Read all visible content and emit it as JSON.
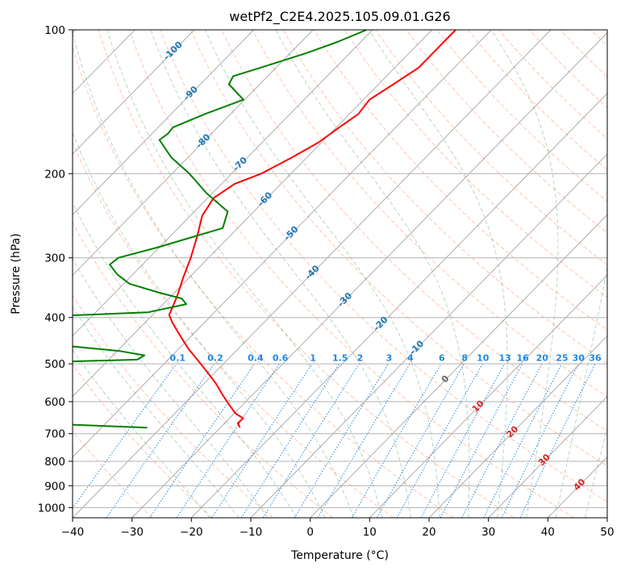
{
  "chart_data": {
    "type": "line",
    "title": "wetPf2_C2E4.2025.105.09.01.G26",
    "xlabel": "Temperature (°C)",
    "ylabel": "Pressure (hPa)",
    "xlim": [
      -40,
      50
    ],
    "ylim": [
      1050,
      100
    ],
    "y_scale": "log",
    "skew": true,
    "grid": true,
    "x_ticks": [
      -40,
      -30,
      -20,
      -10,
      0,
      10,
      20,
      30,
      40,
      50
    ],
    "y_ticks": [
      100,
      200,
      300,
      400,
      500,
      600,
      700,
      800,
      900,
      1000
    ],
    "series": [
      {
        "color": "#ff0000",
        "pressure": [
          680,
          665,
          650,
          635,
          610,
          580,
          550,
          520,
          490,
          465,
          440,
          410,
          395,
          360,
          330,
          300,
          270,
          245,
          225,
          210,
          200,
          185,
          172,
          160,
          150,
          140,
          130,
          120,
          113,
          106,
          100
        ],
        "temperature": [
          -26.7,
          -27.8,
          -27.7,
          -29.8,
          -32.2,
          -35.1,
          -38.0,
          -41.4,
          -45.1,
          -48.4,
          -51.5,
          -55.4,
          -57.2,
          -59.0,
          -61.0,
          -63.0,
          -65.5,
          -68.0,
          -69.0,
          -67.8,
          -65.0,
          -62.5,
          -60.5,
          -59.5,
          -58.5,
          -59.0,
          -57.5,
          -56.0,
          -56.0,
          -56.0,
          -56.0
        ]
      },
      {
        "color": "#008000",
        "pressure": [
          680,
          665,
          650,
          610,
          595,
          585,
          560,
          530,
          505,
          500,
          490,
          480,
          470,
          455,
          450,
          420,
          410,
          402,
          398,
          390,
          375,
          365,
          355,
          340,
          325,
          310,
          300,
          285,
          260,
          240,
          220,
          200,
          185,
          170,
          165,
          160,
          150,
          140,
          130,
          125,
          120,
          112,
          106,
          100
        ],
        "dewpoint": [
          -42.3,
          -63.3,
          -80.0,
          -95.0,
          -84.8,
          -88.0,
          -95.0,
          -100.0,
          -99.3,
          -80.3,
          -55.2,
          -54.7,
          -59.6,
          -72.5,
          -100.0,
          -100.0,
          -98.7,
          -92.5,
          -78.0,
          -61.2,
          -56.1,
          -57.8,
          -62.5,
          -69.0,
          -72.6,
          -75.5,
          -75.2,
          -70.2,
          -62.5,
          -64.4,
          -70.9,
          -77.1,
          -82.8,
          -87.7,
          -87.3,
          -87.5,
          -84.3,
          -80.2,
          -85.2,
          -85.8,
          -82.6,
          -77.4,
          -73.9,
          -71.0
        ]
      }
    ],
    "background_lines": [
      {
        "type": "dry_adiabats",
        "color": "#ff7f50"
      },
      {
        "type": "moist_adiabats",
        "color": "#2e8b57"
      },
      {
        "type": "mixing_ratio",
        "color": "#1e88e5"
      },
      {
        "type": "isotherms",
        "color": "#808080"
      }
    ],
    "annotations": {
      "isotherm_labels": [
        {
          "text": "-100",
          "t": -100,
          "p": 110
        },
        {
          "text": "-90",
          "t": -90,
          "p": 135
        },
        {
          "text": "-80",
          "t": -80,
          "p": 170
        },
        {
          "text": "-70",
          "t": -70,
          "p": 190
        },
        {
          "text": "-60",
          "t": -60,
          "p": 225
        },
        {
          "text": "-50",
          "t": -50,
          "p": 265
        },
        {
          "text": "-40",
          "t": -40,
          "p": 320
        },
        {
          "text": "-30",
          "t": -30,
          "p": 365
        },
        {
          "text": "-20",
          "t": -20,
          "p": 410
        },
        {
          "text": "-10",
          "t": -10,
          "p": 460
        },
        {
          "text": "0",
          "t": 0,
          "p": 535
        }
      ],
      "mixing_ratio_labels": [
        "0.1",
        "0.2",
        "0.4",
        "0.6",
        "1",
        "1.5",
        "2",
        "3",
        "4",
        "6",
        "8",
        "10",
        "13",
        "16",
        "20",
        "25",
        "30",
        "36"
      ],
      "mixing_ratio_values": [
        0.1,
        0.2,
        0.4,
        0.6,
        1,
        1.5,
        2,
        3,
        4,
        6,
        8,
        10,
        13,
        16,
        20,
        25,
        30,
        36
      ],
      "mixing_ratio_label_p": 485,
      "isotherm_label_color": "#1f77b4",
      "mixing_ratio_label_color": "#1e88e5",
      "warm_label_color": "#d62728",
      "zero_label_color": "#666666",
      "warm_labels": [
        {
          "text": "10",
          "t": 10,
          "p": 610
        },
        {
          "text": "20",
          "t": 20,
          "p": 690
        },
        {
          "text": "30",
          "t": 30,
          "p": 790
        },
        {
          "text": "40",
          "t": 40,
          "p": 890
        }
      ]
    }
  }
}
